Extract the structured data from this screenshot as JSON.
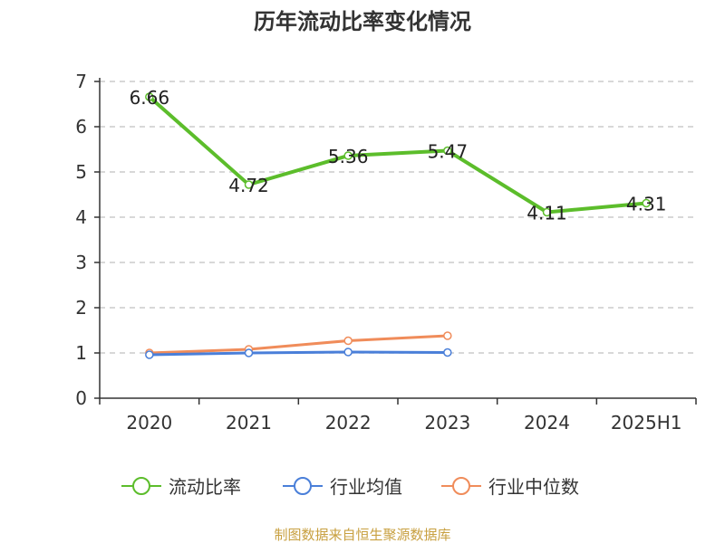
{
  "chart_data": {
    "type": "line",
    "title": "历年流动比率变化情况",
    "categories": [
      "2020",
      "2021",
      "2022",
      "2023",
      "2024",
      "2025H1"
    ],
    "y_ticks": [
      "0",
      "1",
      "2",
      "3",
      "4",
      "5",
      "6",
      "7"
    ],
    "ylim": [
      0,
      7
    ],
    "grid": true,
    "legend_position": "bottom",
    "series": [
      {
        "name": "流动比率",
        "color": "#5cbd2b",
        "values": [
          6.66,
          4.72,
          5.36,
          5.47,
          4.11,
          4.31
        ],
        "labels": [
          "6.66",
          "4.72",
          "5.36",
          "5.47",
          "4.11",
          "4.31"
        ],
        "show_labels": true
      },
      {
        "name": "行业均值",
        "color": "#4a7fd9",
        "values": [
          0.96,
          1.0,
          1.02,
          1.01,
          null,
          null
        ],
        "show_labels": false
      },
      {
        "name": "行业中位数",
        "color": "#f08c5a",
        "values": [
          1.0,
          1.08,
          1.27,
          1.38,
          null,
          null
        ],
        "show_labels": false
      }
    ],
    "source": "制图数据来自恒生聚源数据库"
  }
}
